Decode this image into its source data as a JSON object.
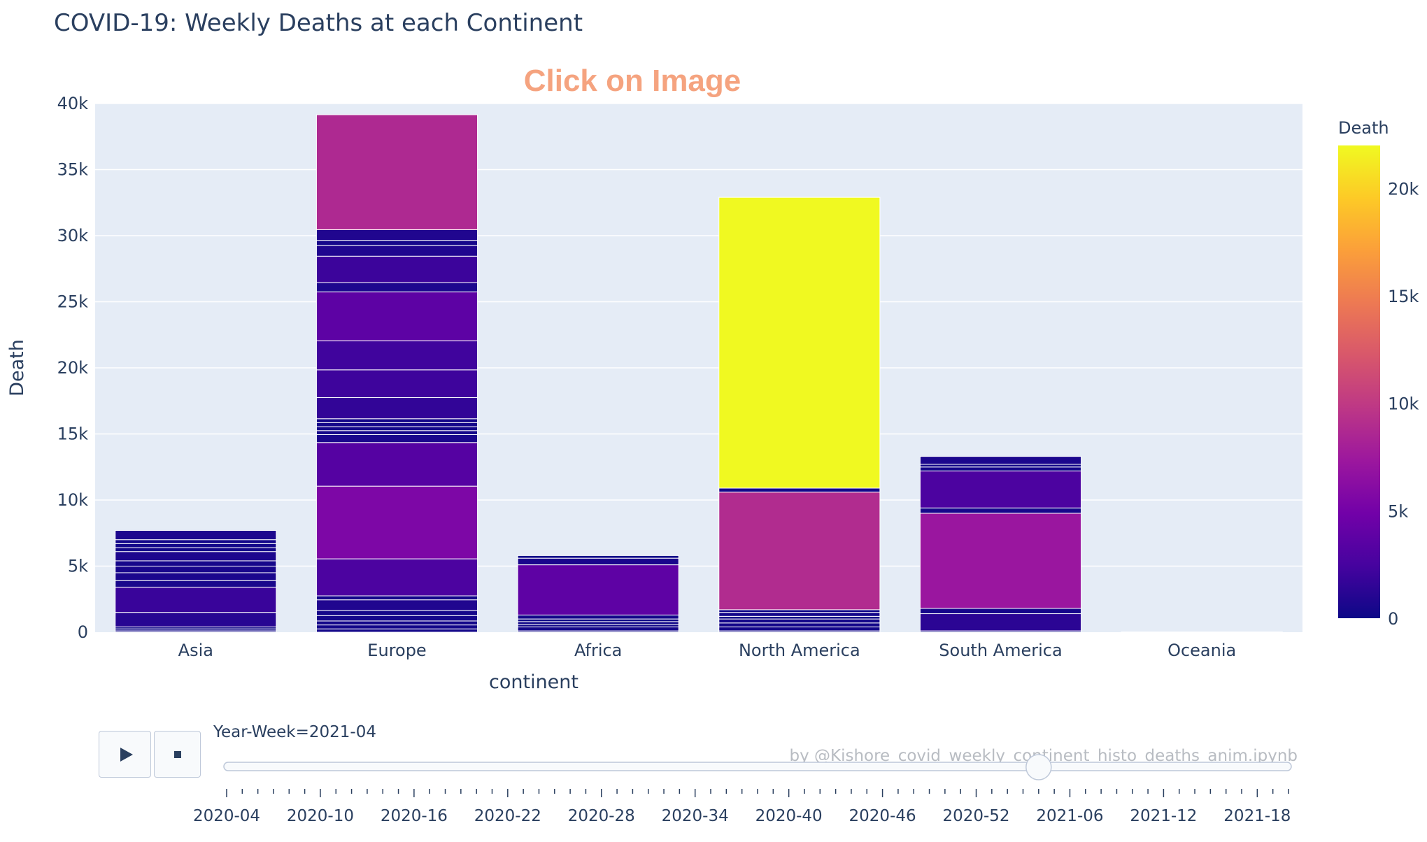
{
  "title": "COVID-19: Weekly Deaths at each Continent",
  "annotation": "Click on Image",
  "credit": "by @Kishore_covid_weekly_continent_histo_deaths_anim.ipynb",
  "controls": {
    "play_icon": "play-icon",
    "stop_icon": "stop-icon"
  },
  "colors": {
    "plot_bg": "#e5ecf6",
    "scale": [
      "#0d0887",
      "#46039f",
      "#7201a8",
      "#9c179e",
      "#bd3786",
      "#d8576b",
      "#ed7953",
      "#fb9f3a",
      "#fdca26",
      "#f0f921"
    ]
  },
  "chart_data": {
    "type": "bar",
    "stacked": true,
    "xlabel": "continent",
    "ylabel": "Death",
    "ylim": [
      0,
      40000
    ],
    "yticks": [
      0,
      5000,
      10000,
      15000,
      20000,
      25000,
      30000,
      35000,
      40000
    ],
    "ytick_labels": [
      "0",
      "5k",
      "10k",
      "15k",
      "20k",
      "25k",
      "30k",
      "35k",
      "40k"
    ],
    "categories": [
      "Asia",
      "Europe",
      "Africa",
      "North America",
      "South America",
      "Oceania"
    ],
    "segments": {
      "Asia": [
        100,
        150,
        150,
        1100,
        1900,
        500,
        600,
        500,
        400,
        700,
        300,
        300,
        300,
        700
      ],
      "Europe": [
        250,
        300,
        300,
        400,
        400,
        800,
        300,
        2800,
        5500,
        3300,
        600,
        300,
        300,
        300,
        300,
        1600,
        2100,
        2200,
        3700,
        700,
        2000,
        800,
        400,
        800,
        8700
      ],
      "Africa": [
        100,
        300,
        200,
        200,
        200,
        300,
        3800,
        500,
        200
      ],
      "North America": [
        100,
        300,
        300,
        300,
        200,
        300,
        200,
        8900,
        300,
        22000
      ],
      "South America": [
        100,
        1300,
        400,
        7200,
        400,
        2800,
        300,
        200,
        600
      ],
      "Oceania": [
        20
      ]
    },
    "colorbar": {
      "title": "Death",
      "range": [
        0,
        22000
      ],
      "ticks": [
        0,
        5000,
        10000,
        15000,
        20000
      ],
      "tick_labels": [
        "0",
        "5k",
        "10k",
        "15k",
        "20k"
      ]
    },
    "slider": {
      "current_label": "Year-Week=2021-04",
      "current_value": "2021-04",
      "steps_total": 69,
      "current_index": 52,
      "label_every": 6,
      "tick_labels": [
        "2020-04",
        "2020-10",
        "2020-16",
        "2020-22",
        "2020-28",
        "2020-34",
        "2020-40",
        "2020-46",
        "2020-52",
        "2021-06",
        "2021-12",
        "2021-18"
      ]
    }
  }
}
